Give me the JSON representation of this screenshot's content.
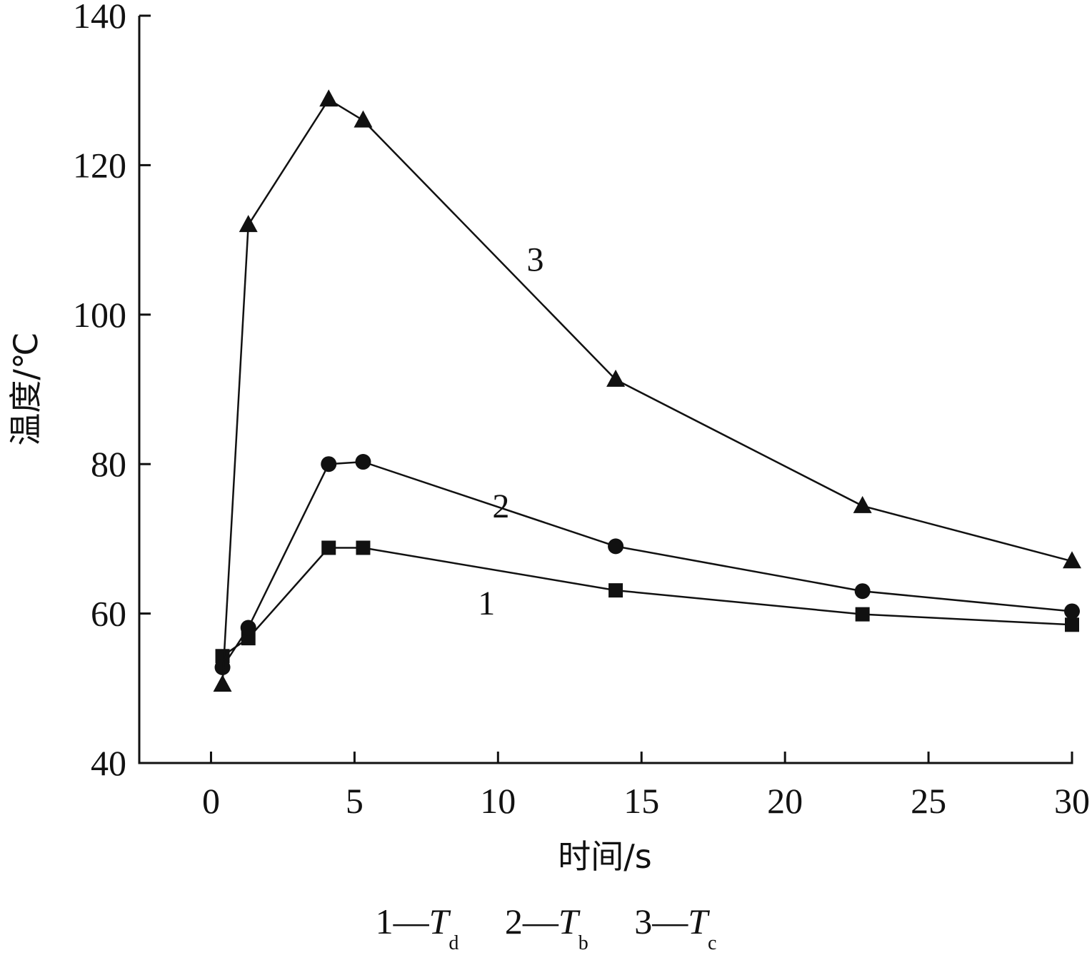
{
  "chart_data": {
    "type": "line",
    "xlabel": "时间/s",
    "ylabel": "温度/℃",
    "xlim": [
      -2.5,
      30
    ],
    "ylim": [
      40,
      140
    ],
    "xticks": [
      0,
      5,
      10,
      15,
      20,
      25,
      30
    ],
    "yticks": [
      40,
      60,
      80,
      100,
      120,
      140
    ],
    "grid": false,
    "series": [
      {
        "name": "1",
        "marker": "square",
        "x": [
          0.4,
          1.3,
          4.1,
          5.3,
          14.1,
          22.7,
          30
        ],
        "y": [
          54.3,
          56.7,
          68.8,
          68.8,
          63.1,
          59.9,
          58.5
        ]
      },
      {
        "name": "2",
        "marker": "circle",
        "x": [
          0.4,
          1.3,
          4.1,
          5.3,
          14.1,
          22.7,
          30
        ],
        "y": [
          52.8,
          58.1,
          80.0,
          80.3,
          69.0,
          63.0,
          60.3
        ]
      },
      {
        "name": "3",
        "marker": "triangle",
        "x": [
          0.4,
          1.3,
          4.1,
          5.3,
          14.1,
          22.7,
          30
        ],
        "y": [
          50.5,
          112.0,
          128.8,
          126.0,
          91.3,
          74.4,
          67.0
        ]
      }
    ],
    "curve_labels": [
      {
        "text": "1",
        "x": 9.6,
        "y": 61.5
      },
      {
        "text": "2",
        "x": 10.1,
        "y": 74.5
      },
      {
        "text": "3",
        "x": 11.3,
        "y": 107.5
      }
    ],
    "legend": {
      "placement": "bottom",
      "entries": [
        {
          "num": "1—",
          "symbol": "T",
          "sub": "d"
        },
        {
          "num": "2—",
          "symbol": "T",
          "sub": "b"
        },
        {
          "num": "3—",
          "symbol": "T",
          "sub": "c"
        }
      ]
    }
  }
}
